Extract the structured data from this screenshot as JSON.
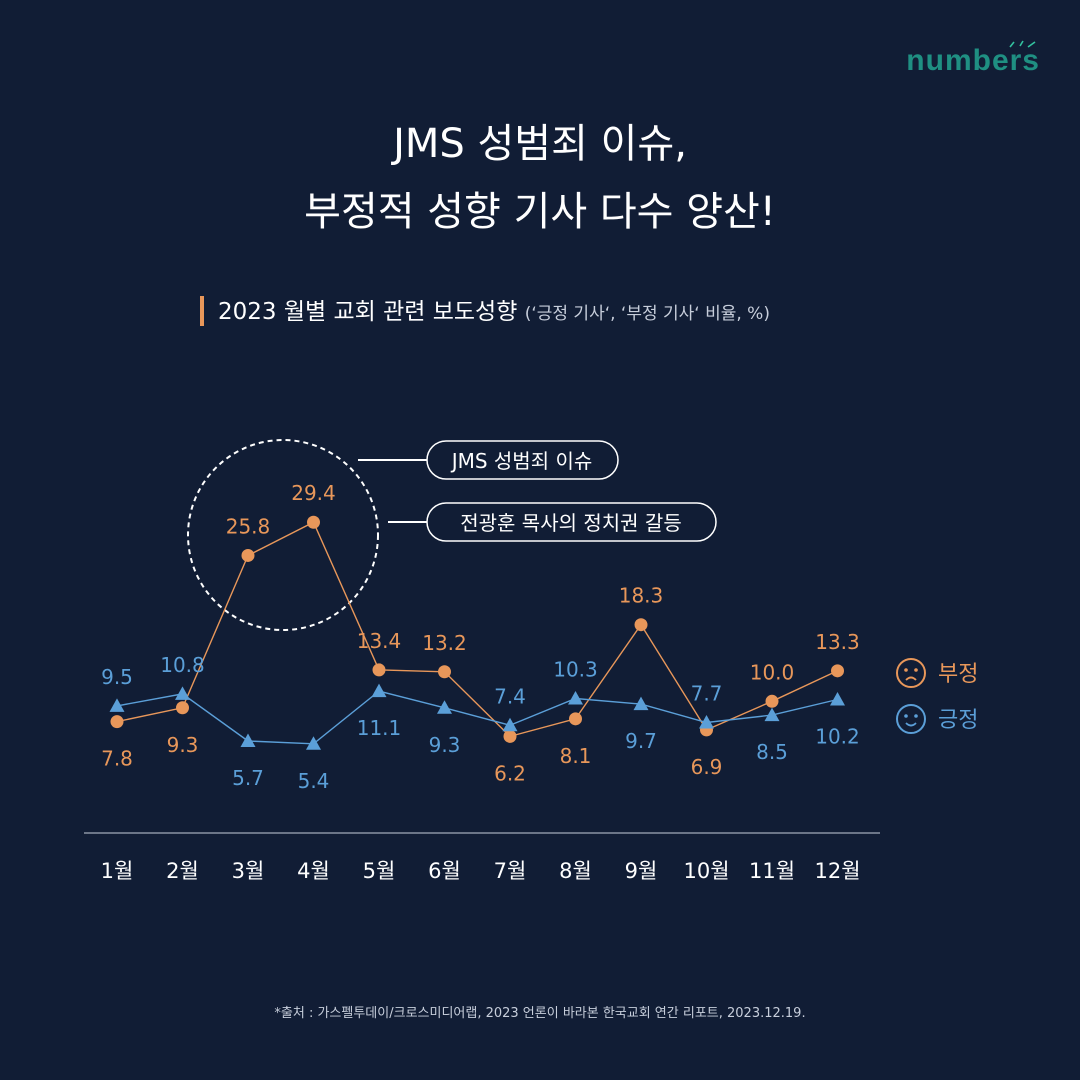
{
  "brand": {
    "logo_text": "numbers"
  },
  "title_line1": "JMS 성범죄 이슈,",
  "title_line2": "부정적 성향 기사 다수 양산!",
  "subtitle": "2023 월별 교회 관련 보도성향",
  "subtitle_note": "(‘긍정 기사‘, ‘부정 기사‘ 비율, %)",
  "annotations": [
    "JMS 성범죄 이슈",
    "전광훈 목사의 정치권 갈등"
  ],
  "source": "*출처 : 가스펠투데이/크로스미디어랩, 2023 언론이 바라본 한국교회 연간 리포트, 2023.12.19.",
  "chart_data": {
    "type": "line",
    "categories": [
      "1월",
      "2월",
      "3월",
      "4월",
      "5월",
      "6월",
      "7월",
      "8월",
      "9월",
      "10월",
      "11월",
      "12월"
    ],
    "series": [
      {
        "name": "부정",
        "color": "#e8975a",
        "marker": "circle",
        "icon": "frown-face-icon",
        "values": [
          7.8,
          9.3,
          25.8,
          29.4,
          13.4,
          13.2,
          6.2,
          8.1,
          18.3,
          6.9,
          10.0,
          13.3
        ],
        "labels": [
          "7.8",
          "9.3",
          "25.8",
          "29.4",
          "13.4",
          "13.2",
          "6.2",
          "8.1",
          "18.3",
          "6.9",
          "10.0",
          "13.3"
        ]
      },
      {
        "name": "긍정",
        "color": "#5b9fd8",
        "marker": "triangle",
        "icon": "smile-face-icon",
        "values": [
          9.5,
          10.8,
          5.7,
          5.4,
          11.1,
          9.3,
          7.4,
          10.3,
          9.7,
          7.7,
          8.5,
          10.2
        ],
        "labels": [
          "9.5",
          "10.8",
          "5.7",
          "5.4",
          "11.1",
          "9.3",
          "7.4",
          "10.3",
          "9.7",
          "7.7",
          "8.5",
          "10.2"
        ]
      }
    ],
    "ylim": [
      0,
      35
    ],
    "legend": "right",
    "grid": false
  }
}
